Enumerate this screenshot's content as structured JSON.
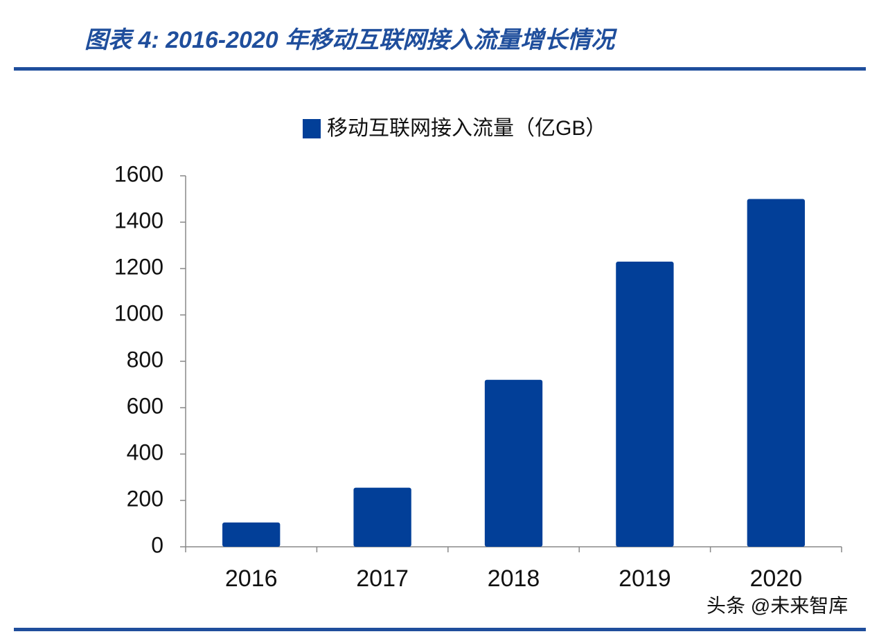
{
  "chart_data": {
    "type": "bar",
    "title": "图表 4:  2016-2020 年移动互联网接入流量增长情况",
    "categories": [
      "2016",
      "2017",
      "2018",
      "2019",
      "2020"
    ],
    "series": [
      {
        "name": "移动互联网接入流量（亿GB）",
        "color": "#023f98",
        "values": [
          105,
          255,
          720,
          1230,
          1500
        ]
      }
    ],
    "ylim": [
      0,
      1600
    ],
    "yticks": [
      0,
      200,
      400,
      600,
      800,
      1000,
      1200,
      1400,
      1600
    ]
  },
  "watermark": "头条 @未来智库"
}
